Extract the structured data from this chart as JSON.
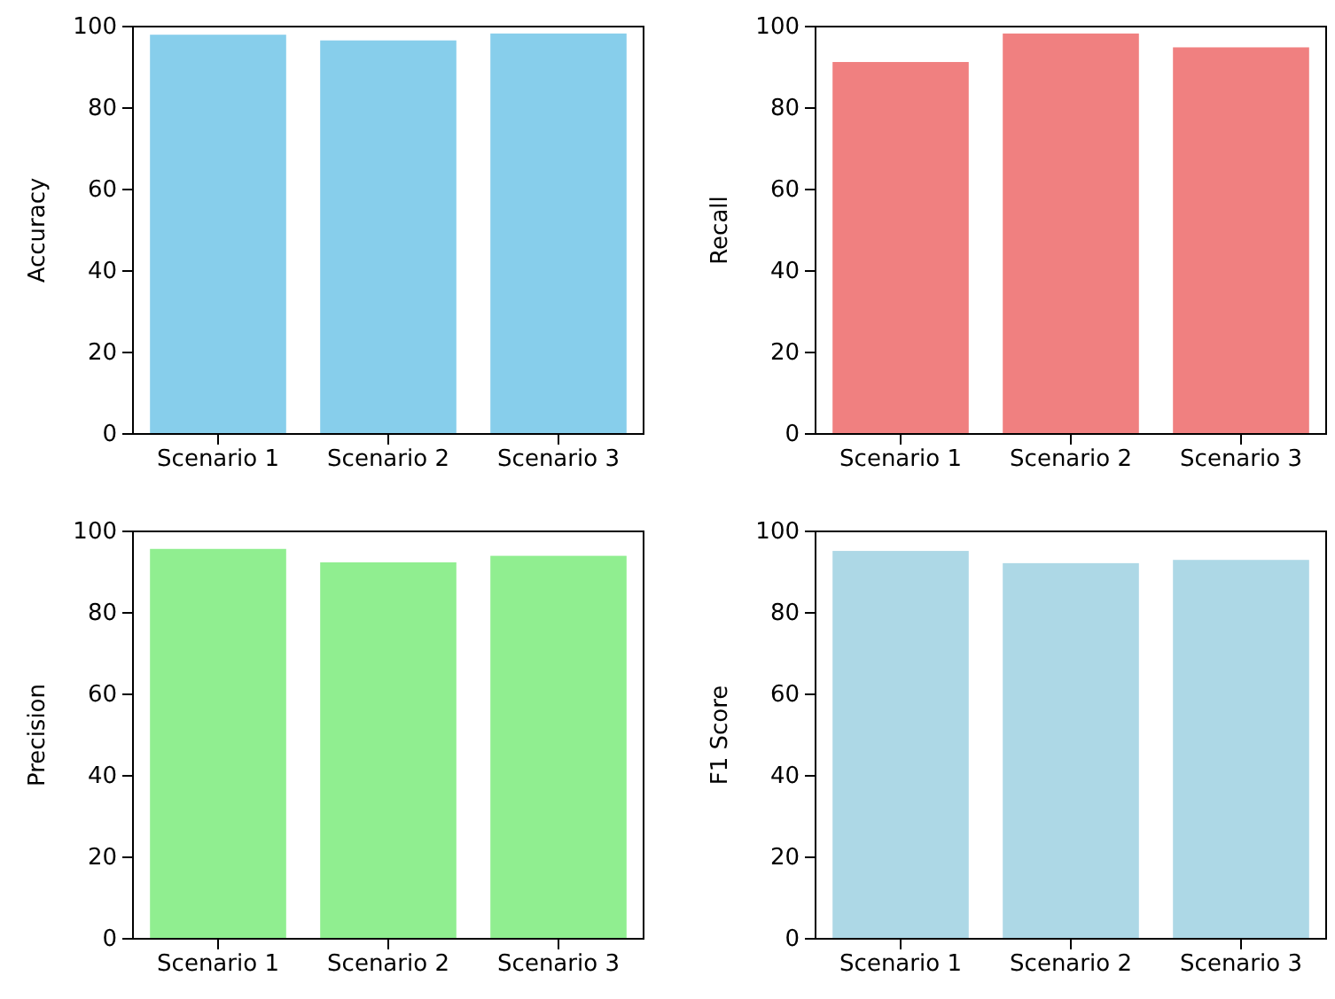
{
  "chart_data": [
    {
      "type": "bar",
      "ylabel": "Accuracy",
      "categories": [
        "Scenario 1",
        "Scenario 2",
        "Scenario 3"
      ],
      "values": [
        98,
        96.6,
        98.3
      ],
      "color": "#87ceeb",
      "ylim": [
        0,
        100
      ],
      "yticks": [
        0,
        20,
        40,
        60,
        80,
        100
      ]
    },
    {
      "type": "bar",
      "ylabel": "Recall",
      "categories": [
        "Scenario 1",
        "Scenario 2",
        "Scenario 3"
      ],
      "values": [
        91.3,
        98.3,
        94.9
      ],
      "color": "#f08080",
      "ylim": [
        0,
        100
      ],
      "yticks": [
        0,
        20,
        40,
        60,
        80,
        100
      ]
    },
    {
      "type": "bar",
      "ylabel": "Precision",
      "categories": [
        "Scenario 1",
        "Scenario 2",
        "Scenario 3"
      ],
      "values": [
        95.7,
        92.4,
        94
      ],
      "color": "#90ee90",
      "ylim": [
        0,
        100
      ],
      "yticks": [
        0,
        20,
        40,
        60,
        80,
        100
      ]
    },
    {
      "type": "bar",
      "ylabel": "F1 Score",
      "categories": [
        "Scenario 1",
        "Scenario 2",
        "Scenario 3"
      ],
      "values": [
        95.2,
        92.2,
        93
      ],
      "color": "#add8e6",
      "ylim": [
        0,
        100
      ],
      "yticks": [
        0,
        20,
        40,
        60,
        80,
        100
      ]
    }
  ]
}
